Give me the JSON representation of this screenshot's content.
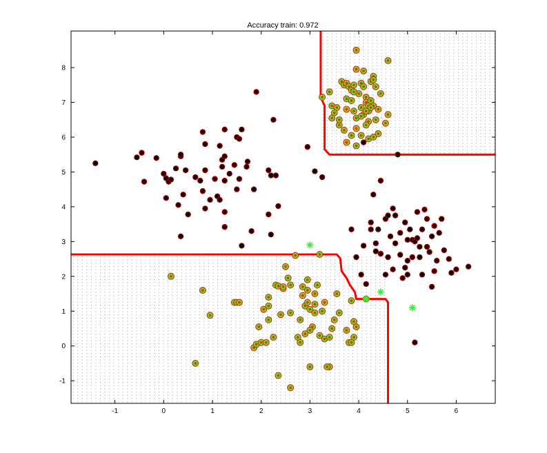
{
  "chart_data": {
    "type": "scatter",
    "title": "Accuracy train: 0.972",
    "xlabel": "",
    "ylabel": "",
    "xlim": [
      -1.9,
      6.8
    ],
    "ylim": [
      -1.65,
      9.05
    ],
    "xticks": [
      -1,
      0,
      1,
      2,
      3,
      4,
      5,
      6
    ],
    "yticks": [
      -1,
      0,
      1,
      2,
      3,
      4,
      5,
      6,
      7,
      8
    ],
    "grid": false,
    "legend": "none",
    "colors": {
      "boundary": "#ff0000",
      "class_a_edge": "#cc0000",
      "class_a_fill": "#000000",
      "class_b_fill": "#66ee33",
      "class_b_edge": "#cc3300",
      "misclassified": "#33ee33",
      "region_dots": "#999999"
    },
    "decision_boundary": [
      [
        [
          3.22,
          9.05
        ],
        [
          3.22,
          7.15
        ],
        [
          3.3,
          6.9
        ],
        [
          3.3,
          5.65
        ],
        [
          3.4,
          5.5
        ],
        [
          6.8,
          5.5
        ]
      ],
      [
        [
          -1.9,
          2.63
        ],
        [
          3.55,
          2.63
        ],
        [
          3.62,
          2.52
        ],
        [
          3.65,
          2.15
        ],
        [
          3.75,
          1.95
        ],
        [
          3.82,
          1.75
        ],
        [
          3.92,
          1.55
        ],
        [
          3.95,
          1.35
        ],
        [
          4.55,
          1.35
        ],
        [
          4.6,
          1.25
        ],
        [
          4.6,
          -1.65
        ]
      ]
    ],
    "shaded_regions": [
      {
        "xmin": 3.22,
        "xmax": 6.8,
        "ymin": 5.5,
        "ymax": 9.05
      },
      {
        "xmin": -1.9,
        "xmax": 4.6,
        "ymin": -1.65,
        "ymax": 2.63
      }
    ],
    "series": [
      {
        "marker": "black-star",
        "points": [
          [
            -1.4,
            5.25
          ],
          [
            -0.55,
            5.42
          ],
          [
            -0.45,
            5.55
          ],
          [
            -0.4,
            4.72
          ],
          [
            -0.15,
            5.4
          ],
          [
            0.0,
            4.95
          ],
          [
            0.05,
            4.82
          ],
          [
            0.1,
            4.72
          ],
          [
            0.15,
            4.78
          ],
          [
            0.05,
            4.25
          ],
          [
            0.25,
            5.1
          ],
          [
            0.35,
            5.45
          ],
          [
            0.35,
            5.5
          ],
          [
            0.4,
            4.35
          ],
          [
            0.45,
            5.05
          ],
          [
            0.3,
            4.05
          ],
          [
            0.5,
            3.78
          ],
          [
            0.35,
            3.15
          ],
          [
            0.65,
            4.85
          ],
          [
            0.75,
            4.75
          ],
          [
            0.85,
            5.05
          ],
          [
            0.8,
            4.45
          ],
          [
            0.85,
            3.95
          ],
          [
            0.8,
            6.15
          ],
          [
            0.85,
            5.8
          ],
          [
            0.95,
            4.2
          ],
          [
            1.05,
            4.8
          ],
          [
            1.1,
            4.3
          ],
          [
            1.15,
            4.2
          ],
          [
            1.15,
            5.75
          ],
          [
            1.2,
            5.35
          ],
          [
            1.2,
            5.15
          ],
          [
            1.25,
            5.45
          ],
          [
            1.25,
            6.22
          ],
          [
            1.25,
            4.75
          ],
          [
            1.25,
            3.85
          ],
          [
            1.25,
            3.42
          ],
          [
            1.35,
            4.95
          ],
          [
            1.45,
            5.2
          ],
          [
            1.5,
            6.0
          ],
          [
            1.5,
            4.5
          ],
          [
            1.55,
            4.8
          ],
          [
            1.6,
            6.22
          ],
          [
            1.55,
            5.95
          ],
          [
            1.6,
            2.88
          ],
          [
            1.7,
            5.15
          ],
          [
            1.72,
            5.3
          ],
          [
            1.85,
            4.5
          ],
          [
            1.9,
            7.3
          ],
          [
            1.8,
            3.3
          ],
          [
            2.15,
            5.05
          ],
          [
            2.15,
            3.78
          ],
          [
            2.2,
            3.2
          ],
          [
            2.2,
            4.9
          ],
          [
            2.25,
            6.5
          ],
          [
            2.3,
            4.9
          ],
          [
            2.35,
            4.02
          ],
          [
            2.95,
            5.72
          ],
          [
            3.1,
            5.02
          ],
          [
            3.25,
            4.85
          ],
          [
            3.85,
            3.35
          ],
          [
            3.95,
            2.55
          ],
          [
            4.05,
            2.05
          ],
          [
            4.1,
            2.88
          ],
          [
            4.15,
            1.78
          ],
          [
            4.25,
            3.35
          ],
          [
            4.25,
            3.55
          ],
          [
            4.3,
            4.35
          ],
          [
            4.35,
            2.95
          ],
          [
            4.35,
            2.72
          ],
          [
            4.4,
            3.35
          ],
          [
            4.45,
            4.75
          ],
          [
            4.45,
            2.65
          ],
          [
            4.55,
            2.05
          ],
          [
            4.55,
            3.65
          ],
          [
            4.6,
            3.75
          ],
          [
            4.65,
            3.15
          ],
          [
            4.7,
            3.95
          ],
          [
            4.75,
            2.95
          ],
          [
            4.75,
            3.75
          ],
          [
            4.85,
            2.62
          ],
          [
            4.85,
            3.25
          ],
          [
            4.95,
            3.55
          ],
          [
            4.95,
            2.25
          ],
          [
            5.0,
            2.05
          ],
          [
            5.0,
            3.05
          ],
          [
            5.05,
            3.35
          ],
          [
            5.1,
            3.05
          ],
          [
            5.1,
            2.55
          ],
          [
            5.15,
            3.0
          ],
          [
            5.2,
            3.85
          ],
          [
            5.2,
            3.1
          ],
          [
            5.25,
            2.85
          ],
          [
            5.25,
            2.55
          ],
          [
            5.3,
            3.35
          ],
          [
            5.35,
            3.92
          ],
          [
            5.4,
            2.85
          ],
          [
            5.4,
            3.65
          ],
          [
            5.45,
            2.7
          ],
          [
            5.5,
            3.15
          ],
          [
            5.55,
            2.15
          ],
          [
            5.55,
            3.45
          ],
          [
            5.6,
            2.45
          ],
          [
            5.65,
            3.25
          ],
          [
            5.7,
            3.65
          ],
          [
            5.75,
            2.75
          ],
          [
            5.85,
            2.5
          ],
          [
            5.9,
            2.1
          ],
          [
            6.0,
            2.2
          ],
          [
            6.25,
            2.28
          ],
          [
            5.0,
            2.45
          ],
          [
            4.9,
            1.95
          ],
          [
            5.15,
            0.1
          ],
          [
            4.1,
            5.85
          ],
          [
            4.8,
            5.5
          ],
          [
            4.6,
            2.55
          ],
          [
            5.3,
            2.05
          ],
          [
            4.7,
            2.2
          ],
          [
            5.5,
            1.7
          ]
        ]
      },
      {
        "marker": "green-circle",
        "points": [
          [
            3.25,
            7.15
          ],
          [
            3.4,
            7.3
          ],
          [
            3.45,
            6.9
          ],
          [
            3.5,
            6.7
          ],
          [
            3.55,
            6.85
          ],
          [
            3.65,
            7.6
          ],
          [
            3.7,
            7.5
          ],
          [
            3.75,
            7.55
          ],
          [
            3.75,
            7.1
          ],
          [
            3.8,
            7.45
          ],
          [
            3.85,
            7.35
          ],
          [
            3.85,
            7.05
          ],
          [
            3.9,
            7.5
          ],
          [
            3.9,
            6.75
          ],
          [
            3.95,
            8.5
          ],
          [
            3.95,
            7.95
          ],
          [
            4.0,
            7.25
          ],
          [
            4.05,
            7.55
          ],
          [
            4.05,
            6.85
          ],
          [
            4.1,
            7.9
          ],
          [
            4.1,
            7.45
          ],
          [
            4.1,
            6.65
          ],
          [
            4.15,
            7.15
          ],
          [
            4.15,
            7.0
          ],
          [
            4.2,
            6.9
          ],
          [
            4.2,
            6.75
          ],
          [
            4.25,
            7.05
          ],
          [
            4.25,
            7.6
          ],
          [
            4.3,
            7.75
          ],
          [
            4.3,
            7.65
          ],
          [
            4.35,
            7.45
          ],
          [
            4.3,
            6.9
          ],
          [
            4.35,
            6.5
          ],
          [
            4.4,
            6.1
          ],
          [
            4.45,
            7.25
          ],
          [
            4.55,
            6.4
          ],
          [
            4.6,
            6.65
          ],
          [
            4.6,
            8.2
          ],
          [
            3.45,
            6.55
          ],
          [
            3.6,
            6.35
          ],
          [
            3.7,
            6.2
          ],
          [
            3.95,
            6.55
          ],
          [
            3.95,
            6.25
          ],
          [
            4.05,
            6.6
          ],
          [
            4.05,
            6.05
          ],
          [
            3.85,
            6.05
          ],
          [
            4.2,
            6.45
          ],
          [
            4.2,
            5.95
          ],
          [
            4.3,
            6.0
          ],
          [
            3.75,
            6.8
          ],
          [
            3.75,
            5.85
          ],
          [
            3.95,
            5.75
          ],
          [
            4.15,
            6.35
          ],
          [
            3.6,
            6.5
          ],
          [
            4.15,
            6.75
          ],
          [
            3.9,
            7.3
          ],
          [
            4.4,
            6.8
          ],
          [
            4.25,
            6.85
          ],
          [
            0.15,
            2.0
          ],
          [
            0.65,
            -0.5
          ],
          [
            0.8,
            1.6
          ],
          [
            0.95,
            0.88
          ],
          [
            1.45,
            1.25
          ],
          [
            1.5,
            1.25
          ],
          [
            1.55,
            1.25
          ],
          [
            1.85,
            -0.05
          ],
          [
            1.9,
            0.05
          ],
          [
            1.95,
            0.55
          ],
          [
            2.0,
            0.1
          ],
          [
            2.05,
            1.05
          ],
          [
            2.1,
            0.1
          ],
          [
            2.15,
            0.75
          ],
          [
            2.15,
            1.15
          ],
          [
            2.15,
            1.4
          ],
          [
            2.25,
            0.25
          ],
          [
            2.3,
            1.75
          ],
          [
            2.35,
            1.72
          ],
          [
            2.35,
            -0.85
          ],
          [
            2.4,
            0.9
          ],
          [
            2.45,
            1.65
          ],
          [
            2.5,
            2.28
          ],
          [
            2.55,
            1.95
          ],
          [
            2.6,
            0.95
          ],
          [
            2.6,
            1.75
          ],
          [
            2.6,
            -1.2
          ],
          [
            2.7,
            2.6
          ],
          [
            2.75,
            0.25
          ],
          [
            2.8,
            0.1
          ],
          [
            2.8,
            0.75
          ],
          [
            2.85,
            1.7
          ],
          [
            2.85,
            1.45
          ],
          [
            2.9,
            1.15
          ],
          [
            2.9,
            0.35
          ],
          [
            2.95,
            1.6
          ],
          [
            2.95,
            1.25
          ],
          [
            2.95,
            1.9
          ],
          [
            3.0,
            1.05
          ],
          [
            3.0,
            -0.6
          ],
          [
            3.05,
            0.55
          ],
          [
            3.1,
            1.5
          ],
          [
            3.1,
            1.2
          ],
          [
            3.15,
            1.75
          ],
          [
            3.2,
            2.63
          ],
          [
            3.2,
            0.3
          ],
          [
            3.25,
            1.0
          ],
          [
            3.3,
            1.25
          ],
          [
            3.3,
            0.2
          ],
          [
            3.4,
            0.25
          ],
          [
            3.4,
            -0.6
          ],
          [
            3.45,
            0.5
          ],
          [
            3.5,
            0.75
          ],
          [
            3.55,
            1.5
          ],
          [
            3.6,
            0.95
          ],
          [
            3.75,
            0.45
          ],
          [
            3.8,
            0.1
          ],
          [
            3.85,
            0.1
          ],
          [
            3.85,
            1.3
          ],
          [
            3.9,
            0.7
          ],
          [
            3.9,
            0.25
          ],
          [
            3.95,
            0.55
          ],
          [
            4.15,
            1.35
          ],
          [
            2.45,
            1.7
          ],
          [
            3.0,
            0.45
          ],
          [
            3.35,
            -0.6
          ],
          [
            3.1,
            0.95
          ]
        ]
      },
      {
        "marker": "misclassified-star",
        "points": [
          [
            3.0,
            2.9
          ],
          [
            4.15,
            1.35
          ],
          [
            4.45,
            1.55
          ],
          [
            5.1,
            1.1
          ]
        ]
      }
    ]
  }
}
